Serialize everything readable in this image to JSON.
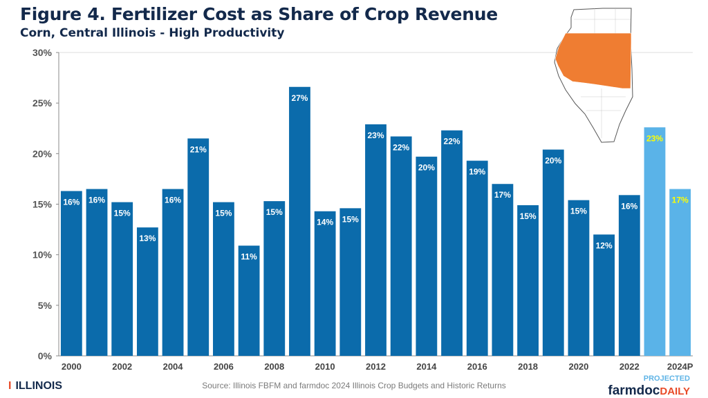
{
  "chart_data": {
    "type": "bar",
    "title": "Figure 4. Fertilizer Cost as Share of Crop Revenue",
    "subtitle": "Corn, Central Illinois - High Productivity",
    "categories": [
      "2000",
      "2001",
      "2002",
      "2003",
      "2004",
      "2005",
      "2006",
      "2007",
      "2008",
      "2009",
      "2010",
      "2011",
      "2012",
      "2013",
      "2014",
      "2015",
      "2016",
      "2017",
      "2018",
      "2019",
      "2020",
      "2021",
      "2022",
      "2023",
      "2024P"
    ],
    "x_tick_labels": [
      "2000",
      "",
      "2002",
      "",
      "2004",
      "",
      "2006",
      "",
      "2008",
      "",
      "2010",
      "",
      "2012",
      "",
      "2014",
      "",
      "2016",
      "",
      "2018",
      "",
      "2020",
      "",
      "2022",
      "",
      "2024P"
    ],
    "values": [
      16.3,
      16.5,
      15.2,
      12.7,
      16.5,
      21.5,
      15.2,
      10.9,
      15.3,
      26.6,
      14.3,
      14.6,
      22.9,
      21.7,
      19.7,
      22.3,
      19.3,
      17.0,
      14.9,
      20.4,
      15.4,
      12.0,
      15.9,
      22.6,
      16.5
    ],
    "data_labels": [
      "16%",
      "16%",
      "15%",
      "13%",
      "16%",
      "21%",
      "15%",
      "11%",
      "15%",
      "27%",
      "14%",
      "15%",
      "23%",
      "22%",
      "20%",
      "22%",
      "19%",
      "17%",
      "15%",
      "20%",
      "15%",
      "12%",
      "16%",
      "23%",
      "17%"
    ],
    "projected": [
      false,
      false,
      false,
      false,
      false,
      false,
      false,
      false,
      false,
      false,
      false,
      false,
      false,
      false,
      false,
      false,
      false,
      false,
      false,
      false,
      false,
      false,
      false,
      true,
      true
    ],
    "ylim": [
      0,
      30
    ],
    "y_ticks": [
      "0%",
      "5%",
      "10%",
      "15%",
      "20%",
      "25%",
      "30%"
    ],
    "xlabel": "",
    "ylabel": "",
    "grid": false,
    "colors": {
      "actual": "#0b6bab",
      "projected": "#5ab3e8",
      "label_actual": "#ffffff",
      "label_projected": "#ffff00",
      "map_region": "#ef7d32"
    }
  },
  "footer": {
    "source": "Source: Illinois FBFM and farmdoc 2024 Illinois Crop Budgets and Historic Returns",
    "illinois_logo": "ILLINOIS",
    "projected_label": "PROJECTED",
    "brand_farmdoc": "farmdoc",
    "brand_daily": "DAILY"
  }
}
